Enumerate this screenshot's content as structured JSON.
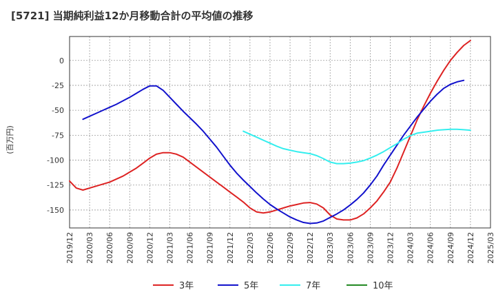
{
  "chart_data": {
    "type": "line",
    "title": "[5721]  当期純利益12か月移動合計の平均値の推移",
    "ylabel": "(百万円)",
    "xlabel": "",
    "ylim": [
      -168,
      24
    ],
    "xlim": [
      "2019-12",
      "2025-03"
    ],
    "yticks": [
      0,
      -25,
      -50,
      -75,
      -100,
      -125,
      -150
    ],
    "xticks": [
      "2019/12",
      "2020/03",
      "2020/06",
      "2020/09",
      "2020/12",
      "2021/03",
      "2021/06",
      "2021/09",
      "2021/12",
      "2022/03",
      "2022/06",
      "2022/09",
      "2022/12",
      "2023/03",
      "2023/06",
      "2023/09",
      "2023/12",
      "2024/03",
      "2024/06",
      "2024/09",
      "2024/12",
      "2025/03"
    ],
    "grid": true,
    "legend_position": "bottom",
    "series": [
      {
        "name": "3年",
        "color": "#dd2222",
        "points": [
          [
            "2019-12",
            -121
          ],
          [
            "2020-01",
            -128
          ],
          [
            "2020-02",
            -130
          ],
          [
            "2020-03",
            -128
          ],
          [
            "2020-04",
            -126
          ],
          [
            "2020-05",
            -124
          ],
          [
            "2020-06",
            -122
          ],
          [
            "2020-07",
            -119
          ],
          [
            "2020-08",
            -116
          ],
          [
            "2020-09",
            -112
          ],
          [
            "2020-10",
            -108
          ],
          [
            "2020-11",
            -103
          ],
          [
            "2020-12",
            -98
          ],
          [
            "2021-01",
            -94
          ],
          [
            "2021-02",
            -92.5
          ],
          [
            "2021-03",
            -92.5
          ],
          [
            "2021-04",
            -94
          ],
          [
            "2021-05",
            -97
          ],
          [
            "2021-06",
            -102
          ],
          [
            "2021-07",
            -107
          ],
          [
            "2021-08",
            -112
          ],
          [
            "2021-09",
            -117
          ],
          [
            "2021-10",
            -122
          ],
          [
            "2021-11",
            -127
          ],
          [
            "2021-12",
            -132
          ],
          [
            "2022-01",
            -137
          ],
          [
            "2022-02",
            -142
          ],
          [
            "2022-03",
            -148
          ],
          [
            "2022-04",
            -152
          ],
          [
            "2022-05",
            -153
          ],
          [
            "2022-06",
            -152
          ],
          [
            "2022-07",
            -150
          ],
          [
            "2022-08",
            -148
          ],
          [
            "2022-09",
            -146
          ],
          [
            "2022-10",
            -144.5
          ],
          [
            "2022-11",
            -143
          ],
          [
            "2022-12",
            -142.5
          ],
          [
            "2023-01",
            -144
          ],
          [
            "2023-02",
            -148
          ],
          [
            "2023-03",
            -155
          ],
          [
            "2023-04",
            -159
          ],
          [
            "2023-05",
            -160
          ],
          [
            "2023-06",
            -160
          ],
          [
            "2023-07",
            -158
          ],
          [
            "2023-08",
            -154
          ],
          [
            "2023-09",
            -148
          ],
          [
            "2023-10",
            -141
          ],
          [
            "2023-11",
            -132
          ],
          [
            "2023-12",
            -122
          ],
          [
            "2024-01",
            -108
          ],
          [
            "2024-02",
            -92
          ],
          [
            "2024-03",
            -76
          ],
          [
            "2024-04",
            -60
          ],
          [
            "2024-05",
            -46
          ],
          [
            "2024-06",
            -33
          ],
          [
            "2024-07",
            -21
          ],
          [
            "2024-08",
            -10
          ],
          [
            "2024-09",
            0
          ],
          [
            "2024-10",
            8
          ],
          [
            "2024-11",
            15
          ],
          [
            "2024-12",
            20
          ]
        ]
      },
      {
        "name": "5年",
        "color": "#1111cc",
        "points": [
          [
            "2020-02",
            -59
          ],
          [
            "2020-03",
            -56
          ],
          [
            "2020-04",
            -53
          ],
          [
            "2020-05",
            -50
          ],
          [
            "2020-06",
            -47
          ],
          [
            "2020-07",
            -44
          ],
          [
            "2020-08",
            -40.5
          ],
          [
            "2020-09",
            -37
          ],
          [
            "2020-10",
            -33
          ],
          [
            "2020-11",
            -29
          ],
          [
            "2020-12",
            -25.5
          ],
          [
            "2021-01",
            -25.5
          ],
          [
            "2021-02",
            -30
          ],
          [
            "2021-03",
            -37
          ],
          [
            "2021-04",
            -44
          ],
          [
            "2021-05",
            -51
          ],
          [
            "2021-06",
            -57.5
          ],
          [
            "2021-07",
            -64
          ],
          [
            "2021-08",
            -71
          ],
          [
            "2021-09",
            -79
          ],
          [
            "2021-10",
            -87
          ],
          [
            "2021-11",
            -96
          ],
          [
            "2021-12",
            -105
          ],
          [
            "2022-01",
            -113
          ],
          [
            "2022-02",
            -120
          ],
          [
            "2022-03",
            -126.5
          ],
          [
            "2022-04",
            -133
          ],
          [
            "2022-05",
            -139
          ],
          [
            "2022-06",
            -144.5
          ],
          [
            "2022-07",
            -149
          ],
          [
            "2022-08",
            -153
          ],
          [
            "2022-09",
            -157
          ],
          [
            "2022-10",
            -160
          ],
          [
            "2022-11",
            -162.5
          ],
          [
            "2022-12",
            -163.5
          ],
          [
            "2023-01",
            -163
          ],
          [
            "2023-02",
            -161
          ],
          [
            "2023-03",
            -157.5
          ],
          [
            "2023-04",
            -154
          ],
          [
            "2023-05",
            -150
          ],
          [
            "2023-06",
            -145
          ],
          [
            "2023-07",
            -139.5
          ],
          [
            "2023-08",
            -133
          ],
          [
            "2023-09",
            -125
          ],
          [
            "2023-10",
            -116
          ],
          [
            "2023-11",
            -105
          ],
          [
            "2023-12",
            -95
          ],
          [
            "2024-01",
            -85
          ],
          [
            "2024-02",
            -75
          ],
          [
            "2024-03",
            -66
          ],
          [
            "2024-04",
            -57
          ],
          [
            "2024-05",
            -49
          ],
          [
            "2024-06",
            -41
          ],
          [
            "2024-07",
            -34
          ],
          [
            "2024-08",
            -28
          ],
          [
            "2024-09",
            -24
          ],
          [
            "2024-10",
            -21.5
          ],
          [
            "2024-11",
            -20
          ]
        ]
      },
      {
        "name": "7年",
        "color": "#33eeee",
        "points": [
          [
            "2022-02",
            -71
          ],
          [
            "2022-03",
            -74
          ],
          [
            "2022-04",
            -77
          ],
          [
            "2022-05",
            -80
          ],
          [
            "2022-06",
            -83
          ],
          [
            "2022-07",
            -86
          ],
          [
            "2022-08",
            -88.5
          ],
          [
            "2022-09",
            -90
          ],
          [
            "2022-10",
            -91.5
          ],
          [
            "2022-11",
            -92.5
          ],
          [
            "2022-12",
            -93.5
          ],
          [
            "2023-01",
            -95.5
          ],
          [
            "2023-02",
            -98.5
          ],
          [
            "2023-03",
            -102
          ],
          [
            "2023-04",
            -103.5
          ],
          [
            "2023-05",
            -103.5
          ],
          [
            "2023-06",
            -103
          ],
          [
            "2023-07",
            -102
          ],
          [
            "2023-08",
            -100.5
          ],
          [
            "2023-09",
            -98
          ],
          [
            "2023-10",
            -95
          ],
          [
            "2023-11",
            -91.5
          ],
          [
            "2023-12",
            -87.5
          ],
          [
            "2024-01",
            -83.5
          ],
          [
            "2024-02",
            -79
          ],
          [
            "2024-03",
            -75.5
          ],
          [
            "2024-04",
            -73
          ],
          [
            "2024-05",
            -72
          ],
          [
            "2024-06",
            -71
          ],
          [
            "2024-07",
            -70
          ],
          [
            "2024-08",
            -69.5
          ],
          [
            "2024-09",
            -69
          ],
          [
            "2024-10",
            -69
          ],
          [
            "2024-11",
            -69.5
          ],
          [
            "2024-12",
            -70
          ]
        ]
      },
      {
        "name": "10年",
        "color": "#228822",
        "points": []
      }
    ]
  }
}
